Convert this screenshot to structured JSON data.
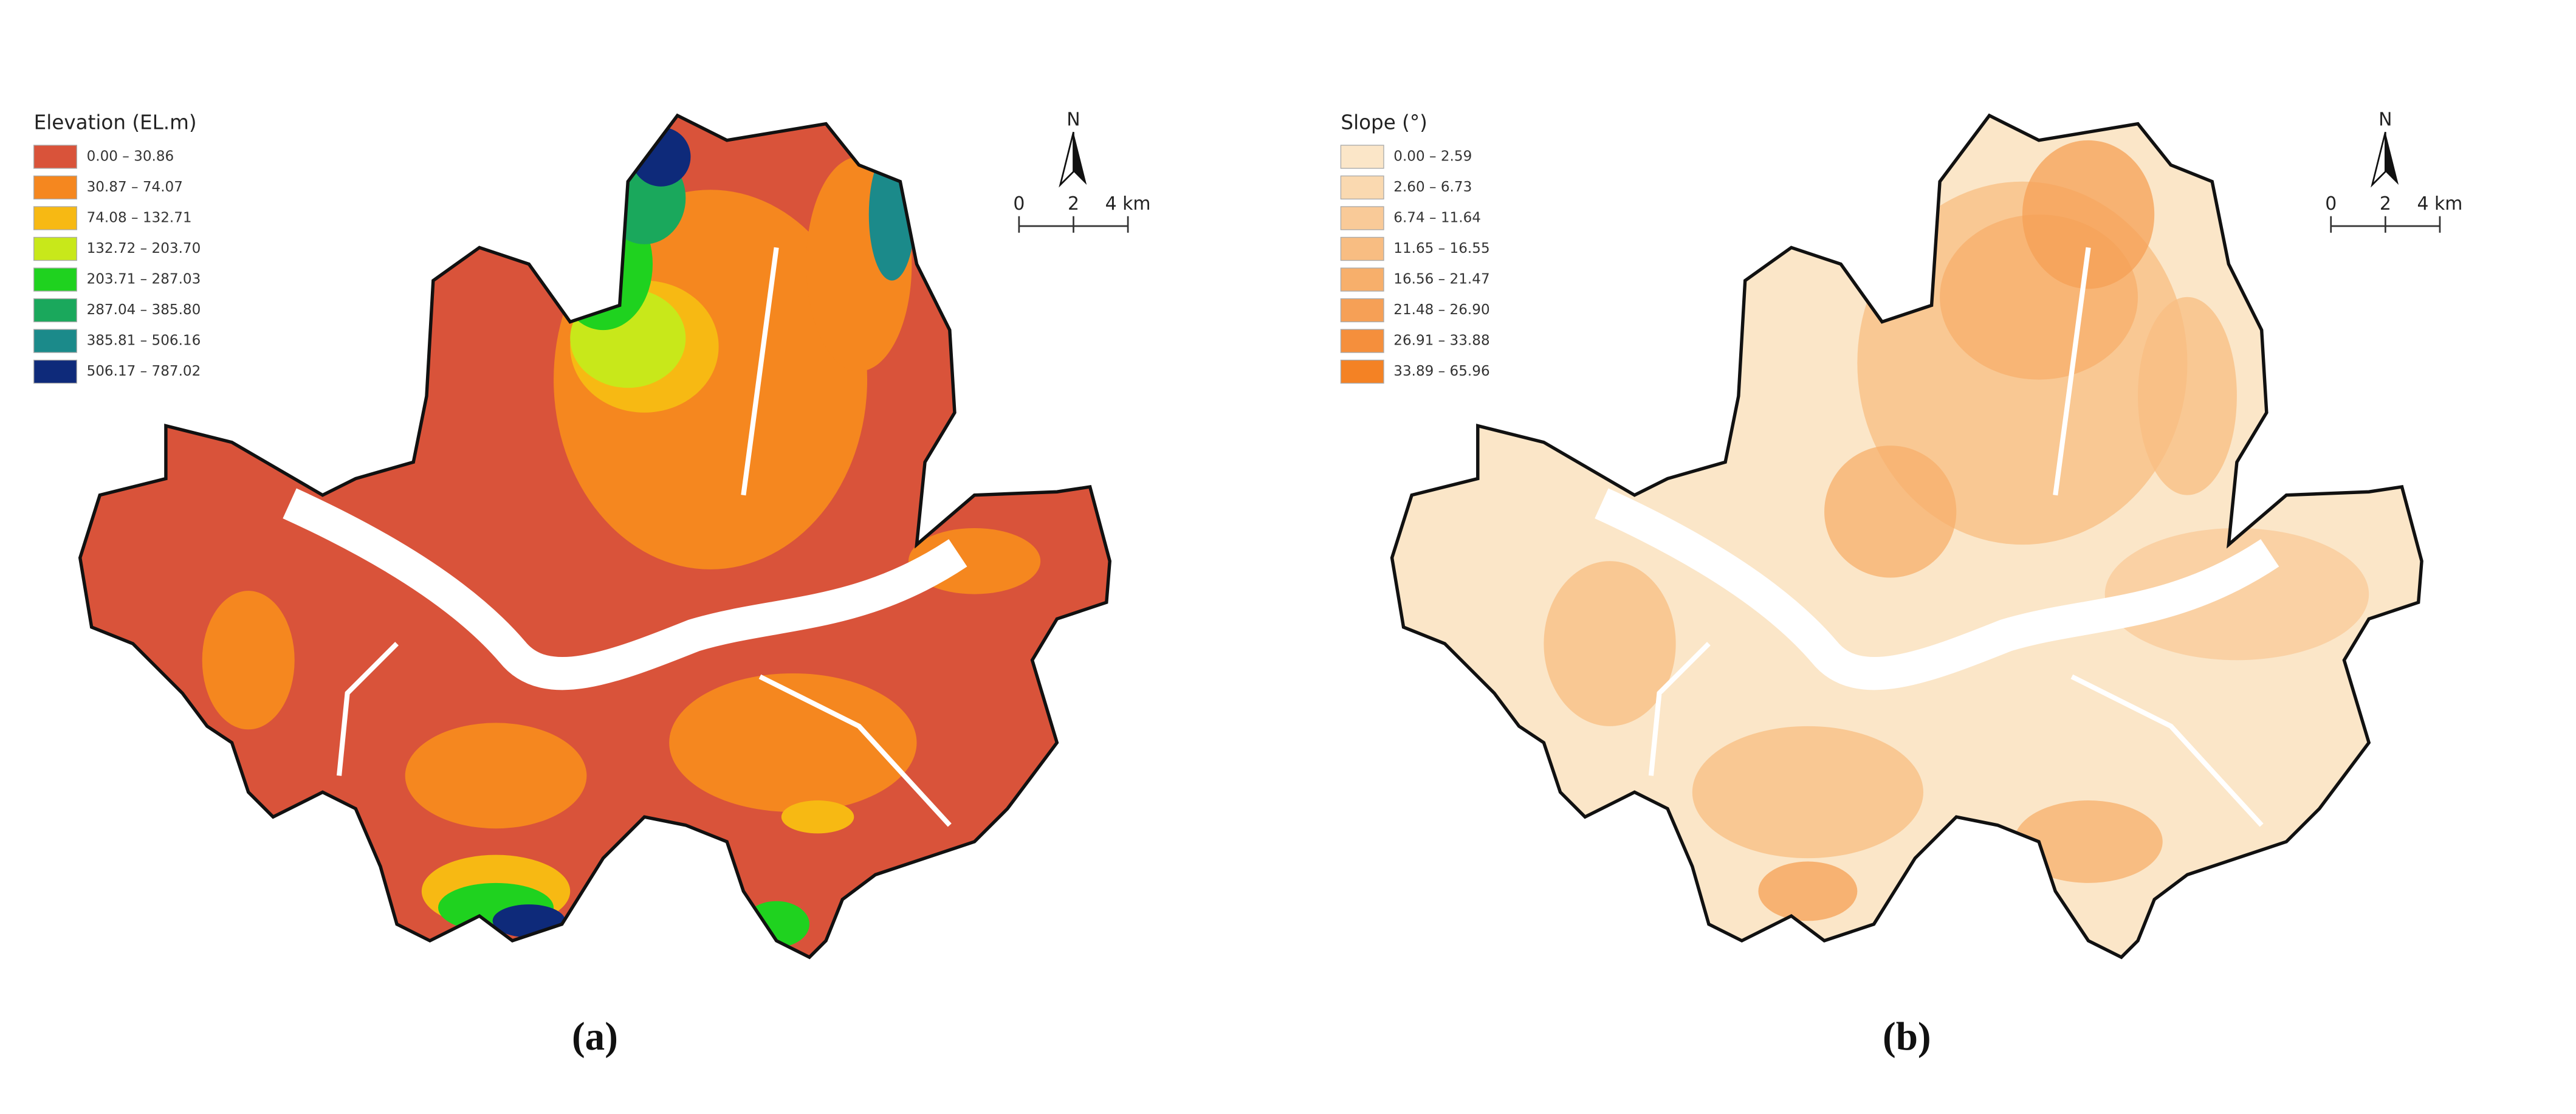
{
  "panels": [
    {
      "caption": "(a)",
      "legend": {
        "title": "Elevation (EL.m)",
        "items": [
          {
            "label": "0.00 – 30.86",
            "color": "#d9533a"
          },
          {
            "label": "30.87 – 74.07",
            "color": "#f5871f"
          },
          {
            "label": "74.08 – 132.71",
            "color": "#f7b913"
          },
          {
            "label": "132.72 – 203.70",
            "color": "#c8e81a"
          },
          {
            "label": "203.71 – 287.03",
            "color": "#1fd21f"
          },
          {
            "label": "287.04 – 385.80",
            "color": "#1aa85c"
          },
          {
            "label": "385.81 – 506.16",
            "color": "#1b8a8a"
          },
          {
            "label": "506.17 – 787.02",
            "color": "#0e2a7a"
          }
        ]
      },
      "north": "N",
      "scale": [
        "0",
        "2",
        "4 km"
      ]
    },
    {
      "caption": "(b)",
      "legend": {
        "title": "Slope (°)",
        "items": [
          {
            "label": "0.00 – 2.59",
            "color": "#fbe6c8"
          },
          {
            "label": "2.60 – 6.73",
            "color": "#fad9b0"
          },
          {
            "label": "6.74 – 11.64",
            "color": "#f9ca98"
          },
          {
            "label": "11.65 – 16.55",
            "color": "#f8bd82"
          },
          {
            "label": "16.56 – 21.47",
            "color": "#f7af6b"
          },
          {
            "label": "21.48 – 26.90",
            "color": "#f6a056"
          },
          {
            "label": "26.91 – 33.88",
            "color": "#f58f3c"
          },
          {
            "label": "33.89 – 65.96",
            "color": "#f48224"
          }
        ]
      },
      "north": "N",
      "scale": [
        "0",
        "2",
        "4 km"
      ]
    }
  ]
}
